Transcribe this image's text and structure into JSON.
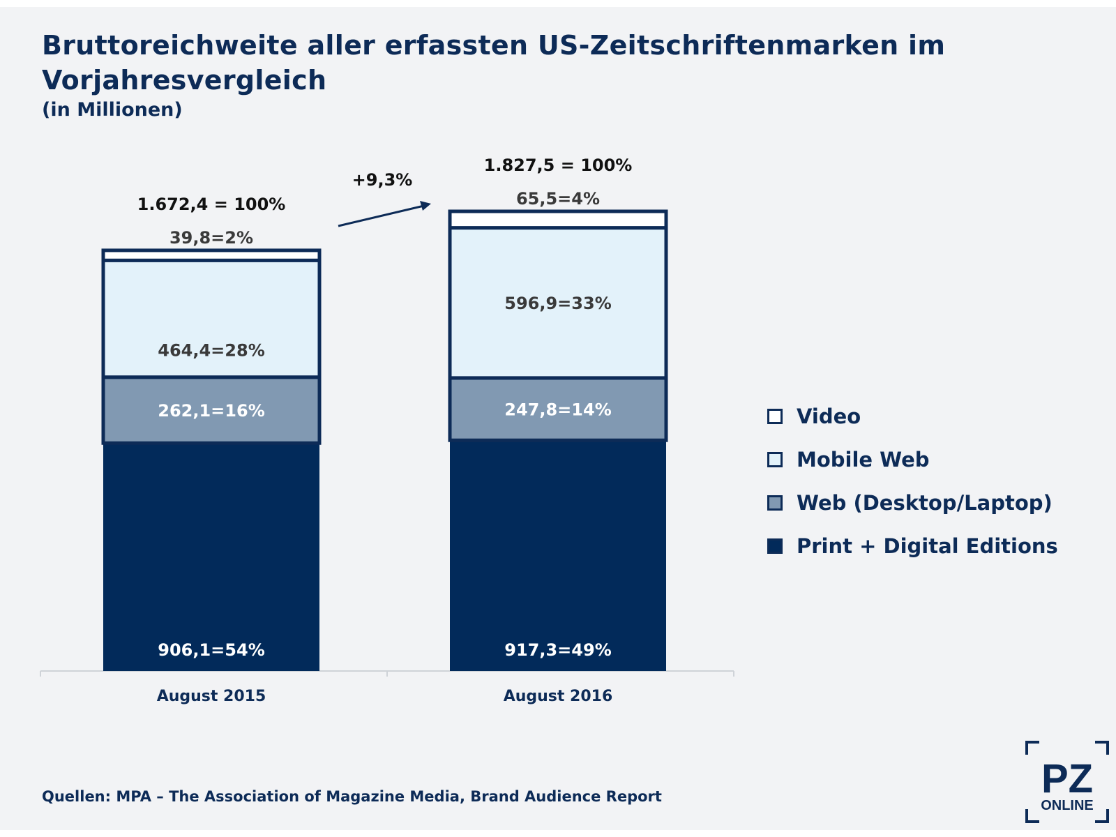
{
  "title": "Bruttoreichweite aller erfassten US-Zeitschriftenmarken im Vorjahresvergleich",
  "subtitle": "(in Millionen)",
  "footer": "Quellen: MPA – The Association of Magazine Media, Brand Audience Report",
  "logo": {
    "line1": "PZ",
    "line2": "ONLINE"
  },
  "colors": {
    "print": "#022a5a",
    "web": "#8199b2",
    "mobile": "#e3f2fa",
    "video": "#ffffff",
    "outline": "#0d2b57",
    "background": "#f2f3f5"
  },
  "chart_data": {
    "type": "bar",
    "stacked": true,
    "categories": [
      "August 2015",
      "August 2016"
    ],
    "totals": [
      1672.4,
      1827.5
    ],
    "total_labels": [
      "1.672,4 = 100%",
      "1.827,5 = 100%"
    ],
    "growth_label": "+9,3%",
    "series": [
      {
        "name": "Print + Digital Editions",
        "key": "print",
        "values": [
          906.1,
          917.3
        ],
        "labels": [
          "906,1=54%",
          "917,3=49%"
        ]
      },
      {
        "name": "Web (Desktop/Laptop)",
        "key": "web",
        "values": [
          262.1,
          247.8
        ],
        "labels": [
          "262,1=16%",
          "247,8=14%"
        ]
      },
      {
        "name": "Mobile Web",
        "key": "mobile",
        "values": [
          464.4,
          596.9
        ],
        "labels": [
          "464,4=28%",
          "596,9=33%"
        ]
      },
      {
        "name": "Video",
        "key": "video",
        "values": [
          39.8,
          65.5
        ],
        "labels": [
          "39,8=2%",
          "65,5=4%"
        ]
      }
    ],
    "legend": [
      "Video",
      "Mobile Web",
      "Web (Desktop/Laptop)",
      "Print + Digital Editions"
    ],
    "legend_position": "right"
  }
}
